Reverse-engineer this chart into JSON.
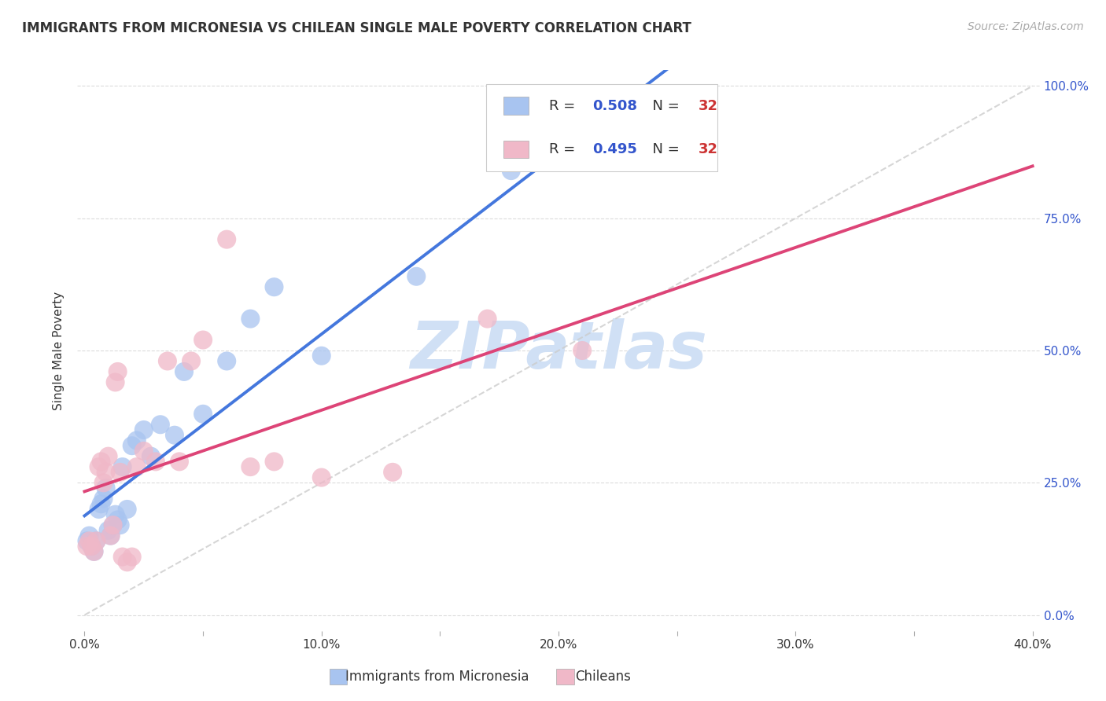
{
  "title": "IMMIGRANTS FROM MICRONESIA VS CHILEAN SINGLE MALE POVERTY CORRELATION CHART",
  "source": "Source: ZipAtlas.com",
  "ylabel": "Single Male Poverty",
  "x_ticks": [
    "0.0%",
    "",
    "10.0%",
    "",
    "20.0%",
    "",
    "30.0%",
    "",
    "40.0%"
  ],
  "x_tick_vals": [
    0.0,
    0.05,
    0.1,
    0.15,
    0.2,
    0.25,
    0.3,
    0.35,
    0.4
  ],
  "y_tick_vals": [
    0.0,
    0.25,
    0.5,
    0.75,
    1.0
  ],
  "y_tick_labels": [
    "0.0%",
    "25.0%",
    "50.0%",
    "75.0%",
    "100.0%"
  ],
  "blue_color": "#a8c4f0",
  "pink_color": "#f0b8c8",
  "line_blue": "#4477dd",
  "line_pink": "#dd4477",
  "diag_color": "#cccccc",
  "watermark": "ZIPatlas",
  "watermark_color": "#d0e0f5",
  "grid_color": "#cccccc",
  "blue_x": [
    0.001,
    0.002,
    0.003,
    0.004,
    0.005,
    0.006,
    0.007,
    0.008,
    0.009,
    0.01,
    0.011,
    0.012,
    0.013,
    0.014,
    0.015,
    0.016,
    0.018,
    0.02,
    0.022,
    0.025,
    0.028,
    0.032,
    0.038,
    0.042,
    0.05,
    0.06,
    0.07,
    0.08,
    0.1,
    0.14,
    0.18,
    0.26
  ],
  "blue_y": [
    0.14,
    0.15,
    0.13,
    0.12,
    0.14,
    0.2,
    0.21,
    0.22,
    0.24,
    0.16,
    0.15,
    0.17,
    0.19,
    0.18,
    0.17,
    0.28,
    0.2,
    0.32,
    0.33,
    0.35,
    0.3,
    0.36,
    0.34,
    0.46,
    0.38,
    0.48,
    0.56,
    0.62,
    0.49,
    0.64,
    0.84,
    0.95
  ],
  "pink_x": [
    0.001,
    0.002,
    0.003,
    0.004,
    0.005,
    0.006,
    0.007,
    0.008,
    0.009,
    0.01,
    0.011,
    0.012,
    0.013,
    0.014,
    0.015,
    0.016,
    0.018,
    0.02,
    0.022,
    0.025,
    0.03,
    0.035,
    0.04,
    0.045,
    0.05,
    0.06,
    0.07,
    0.08,
    0.1,
    0.13,
    0.17,
    0.21
  ],
  "pink_y": [
    0.13,
    0.14,
    0.13,
    0.12,
    0.14,
    0.28,
    0.29,
    0.25,
    0.27,
    0.3,
    0.15,
    0.17,
    0.44,
    0.46,
    0.27,
    0.11,
    0.1,
    0.11,
    0.28,
    0.31,
    0.29,
    0.48,
    0.29,
    0.48,
    0.52,
    0.71,
    0.28,
    0.29,
    0.26,
    0.27,
    0.56,
    0.5
  ],
  "legend_blue_r": "0.508",
  "legend_pink_r": "0.495",
  "legend_n": "32",
  "r_color": "#3355cc",
  "n_color": "#cc3333",
  "text_color": "#333333",
  "right_axis_color": "#3355cc"
}
